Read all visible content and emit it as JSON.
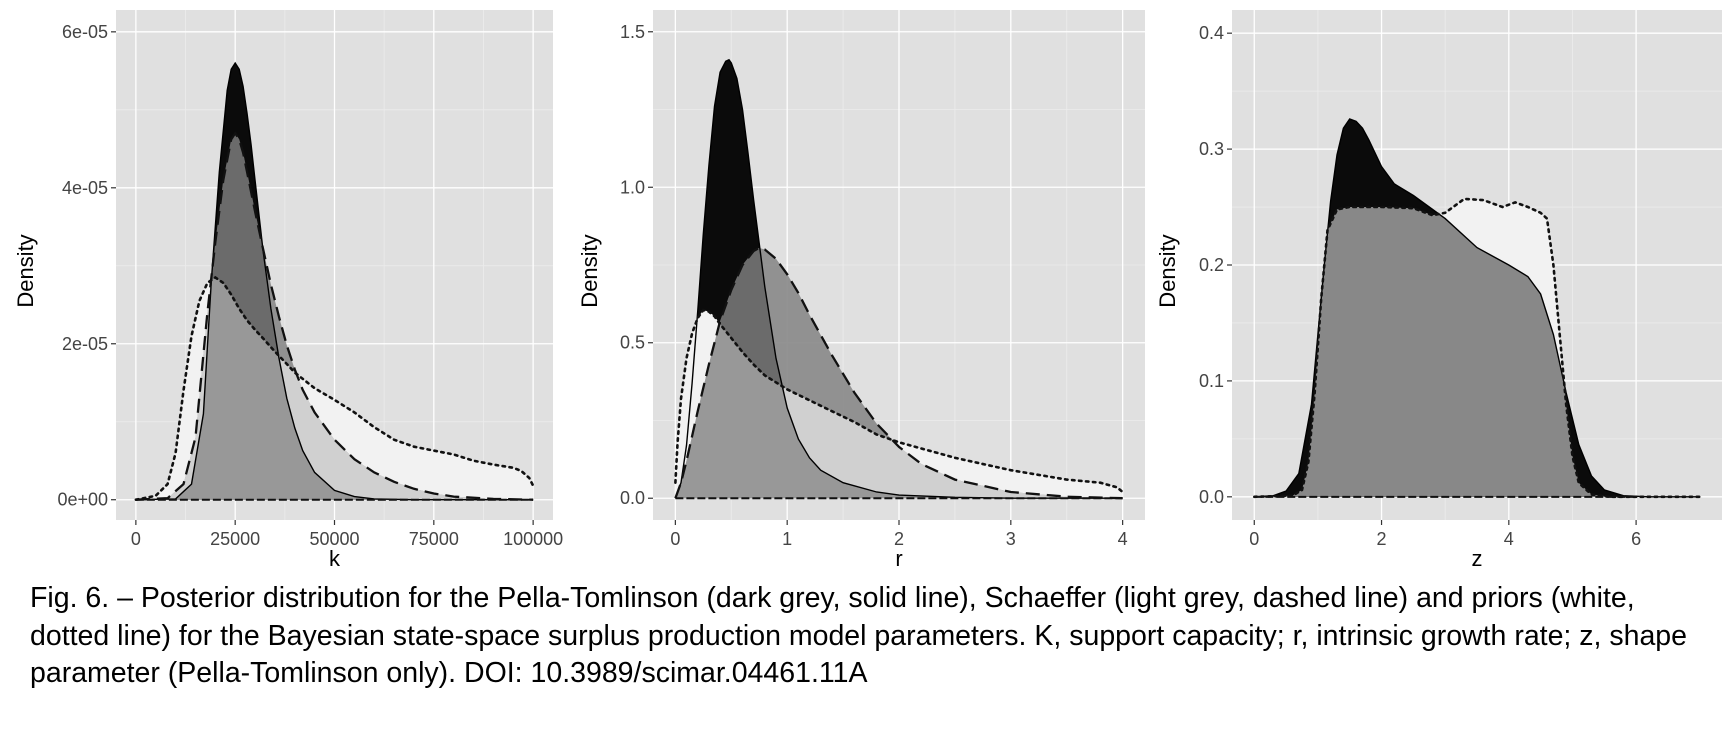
{
  "colors": {
    "panel_background": "#e0e0e0",
    "grid_major": "#ffffff",
    "pella_tomlinson_fill": "#0b0b0b",
    "schaeffer_fill": "#8a8a8a",
    "prior_fill": "#f2f2f2",
    "prior_schaeffer_overlap": "#d0d0d0",
    "pt_prior_overlap": "#888888"
  },
  "chart_data": [
    {
      "type": "area",
      "panel": "k",
      "xlabel": "k",
      "ylabel": "Density",
      "xlim": [
        -5000,
        105000
      ],
      "ylim": [
        -2.6e-06,
        6.28e-05
      ],
      "x_ticks": [
        0,
        25000,
        50000,
        75000,
        100000
      ],
      "x_tick_labels": [
        "0",
        "25000",
        "50000",
        "75000",
        "100000"
      ],
      "y_ticks": [
        0,
        2e-05,
        4e-05,
        6e-05
      ],
      "y_tick_labels": [
        "0e+00",
        "2e-05",
        "4e-05",
        "6e-05"
      ],
      "series": [
        {
          "name": "Prior",
          "fill": "white",
          "line": "dotted",
          "x": [
            0,
            5000,
            8000,
            10000,
            12000,
            14000,
            16000,
            18000,
            20000,
            22000,
            24000,
            26000,
            28000,
            30000,
            32000,
            35000,
            38000,
            40000,
            45000,
            50000,
            55000,
            60000,
            65000,
            70000,
            75000,
            80000,
            85000,
            90000,
            95000,
            97000,
            99000,
            100000
          ],
          "y": [
            0,
            5e-07,
            2e-06,
            6e-06,
            1.4e-05,
            2.1e-05,
            2.55e-05,
            2.78e-05,
            2.85e-05,
            2.78e-05,
            2.63e-05,
            2.45e-05,
            2.3e-05,
            2.18e-05,
            2.07e-05,
            1.9e-05,
            1.74e-05,
            1.63e-05,
            1.43e-05,
            1.28e-05,
            1.12e-05,
            9.3e-06,
            7.7e-06,
            6.8e-06,
            6.3e-06,
            5.8e-06,
            5e-06,
            4.5e-06,
            4.1e-06,
            3.7e-06,
            2.8e-06,
            1.8e-06
          ]
        },
        {
          "name": "Schaeffer",
          "fill": "light grey",
          "line": "dashed",
          "x": [
            0,
            8000,
            12000,
            15000,
            18000,
            20000,
            22000,
            24000,
            25000,
            26000,
            27000,
            28000,
            30000,
            32000,
            34000,
            36000,
            38000,
            40000,
            42000,
            45000,
            50000,
            55000,
            60000,
            65000,
            70000,
            75000,
            80000,
            90000,
            100000
          ],
          "y": [
            0,
            2e-07,
            2e-06,
            8e-06,
            2.4e-05,
            3.3e-05,
            4.1e-05,
            4.62e-05,
            4.7e-05,
            4.62e-05,
            4.45e-05,
            4.2e-05,
            3.7e-05,
            3.22e-05,
            2.76e-05,
            2.35e-05,
            1.98e-05,
            1.67e-05,
            1.41e-05,
            1.12e-05,
            7.7e-06,
            5.2e-06,
            3.5e-06,
            2.3e-06,
            1.4e-06,
            8e-07,
            4e-07,
            1e-07,
            0
          ]
        },
        {
          "name": "Pella-Tomlinson",
          "fill": "dark grey",
          "line": "solid",
          "x": [
            0,
            10000,
            14000,
            17000,
            19000,
            21000,
            23000,
            24000,
            25000,
            26000,
            27000,
            28000,
            29000,
            30000,
            32000,
            34000,
            36000,
            38000,
            40000,
            42000,
            45000,
            50000,
            55000,
            60000,
            70000,
            100000
          ],
          "y": [
            0,
            1e-07,
            2e-06,
            1.1e-05,
            2.8e-05,
            4.2e-05,
            5.25e-05,
            5.52e-05,
            5.6e-05,
            5.52e-05,
            5.3e-05,
            4.95e-05,
            4.55e-05,
            4.1e-05,
            3.2e-05,
            2.45e-05,
            1.82e-05,
            1.3e-05,
            9.2e-06,
            6.3e-06,
            3.5e-06,
            1.2e-06,
            4e-07,
            1e-07,
            0,
            0
          ]
        }
      ]
    },
    {
      "type": "area",
      "panel": "r",
      "xlabel": "r",
      "ylabel": "Density",
      "xlim": [
        -0.2,
        4.2
      ],
      "ylim": [
        -0.07,
        1.57
      ],
      "x_ticks": [
        0,
        1,
        2,
        3,
        4
      ],
      "x_tick_labels": [
        "0",
        "1",
        "2",
        "3",
        "4"
      ],
      "y_ticks": [
        0,
        0.5,
        1.0,
        1.5
      ],
      "y_tick_labels": [
        "0.0",
        "0.5",
        "1.0",
        "1.5"
      ],
      "series": [
        {
          "name": "Prior",
          "fill": "white",
          "line": "dotted",
          "x": [
            0,
            0.02,
            0.05,
            0.1,
            0.15,
            0.2,
            0.25,
            0.3,
            0.35,
            0.4,
            0.5,
            0.6,
            0.7,
            0.8,
            1.0,
            1.2,
            1.4,
            1.6,
            1.8,
            2.0,
            2.5,
            3.0,
            3.5,
            3.8,
            3.95,
            4.0
          ],
          "y": [
            0.05,
            0.18,
            0.32,
            0.45,
            0.53,
            0.58,
            0.605,
            0.6,
            0.585,
            0.56,
            0.515,
            0.47,
            0.43,
            0.395,
            0.35,
            0.315,
            0.28,
            0.245,
            0.205,
            0.18,
            0.13,
            0.09,
            0.06,
            0.05,
            0.035,
            0.02
          ]
        },
        {
          "name": "Schaeffer",
          "fill": "light grey",
          "line": "dashed",
          "x": [
            0,
            0.05,
            0.1,
            0.2,
            0.3,
            0.4,
            0.5,
            0.6,
            0.7,
            0.75,
            0.8,
            0.9,
            1.0,
            1.1,
            1.2,
            1.4,
            1.6,
            1.8,
            2.0,
            2.2,
            2.5,
            3.0,
            3.5,
            4.0
          ],
          "y": [
            0,
            0.05,
            0.12,
            0.28,
            0.43,
            0.57,
            0.67,
            0.75,
            0.795,
            0.805,
            0.8,
            0.77,
            0.72,
            0.66,
            0.59,
            0.46,
            0.34,
            0.24,
            0.165,
            0.11,
            0.06,
            0.02,
            0.005,
            0
          ]
        },
        {
          "name": "Pella-Tomlinson",
          "fill": "dark grey",
          "line": "solid",
          "x": [
            0,
            0.05,
            0.1,
            0.15,
            0.2,
            0.25,
            0.3,
            0.35,
            0.4,
            0.45,
            0.48,
            0.5,
            0.55,
            0.6,
            0.65,
            0.7,
            0.75,
            0.8,
            0.9,
            1.0,
            1.1,
            1.2,
            1.3,
            1.5,
            1.8,
            2.0,
            2.5,
            3.0,
            4.0
          ],
          "y": [
            0,
            0.05,
            0.17,
            0.37,
            0.6,
            0.85,
            1.07,
            1.26,
            1.37,
            1.405,
            1.41,
            1.4,
            1.35,
            1.25,
            1.11,
            0.96,
            0.82,
            0.68,
            0.45,
            0.29,
            0.19,
            0.13,
            0.09,
            0.05,
            0.02,
            0.01,
            0.003,
            0,
            0
          ]
        }
      ]
    },
    {
      "type": "area",
      "panel": "z",
      "xlabel": "z",
      "ylabel": "Density",
      "xlim": [
        -0.35,
        7.35
      ],
      "ylim": [
        -0.02,
        0.42
      ],
      "x_ticks": [
        0,
        2,
        4,
        6
      ],
      "x_tick_labels": [
        "0",
        "2",
        "4",
        "6"
      ],
      "y_ticks": [
        0,
        0.1,
        0.2,
        0.3,
        0.4
      ],
      "y_tick_labels": [
        "0.0",
        "0.1",
        "0.2",
        "0.3",
        "0.4"
      ],
      "series": [
        {
          "name": "Prior",
          "fill": "white",
          "line": "dotted",
          "x": [
            0,
            0.6,
            0.75,
            0.85,
            0.95,
            1.05,
            1.15,
            1.3,
            1.5,
            2.0,
            2.5,
            2.8,
            3.0,
            3.3,
            3.6,
            3.9,
            4.1,
            4.3,
            4.5,
            4.6,
            4.7,
            4.8,
            4.9,
            5.0,
            5.1,
            5.3,
            5.6,
            7.0
          ],
          "y": [
            0,
            0.001,
            0.006,
            0.03,
            0.09,
            0.17,
            0.23,
            0.248,
            0.25,
            0.25,
            0.249,
            0.243,
            0.245,
            0.257,
            0.256,
            0.25,
            0.254,
            0.25,
            0.245,
            0.24,
            0.2,
            0.14,
            0.08,
            0.035,
            0.012,
            0.002,
            0,
            0
          ]
        },
        {
          "name": "Pella-Tomlinson",
          "fill": "dark grey",
          "line": "solid",
          "x": [
            0,
            0.3,
            0.5,
            0.7,
            0.9,
            1.0,
            1.1,
            1.2,
            1.3,
            1.4,
            1.5,
            1.6,
            1.7,
            1.8,
            2.0,
            2.2,
            2.5,
            3.0,
            3.5,
            4.0,
            4.3,
            4.5,
            4.7,
            4.9,
            5.1,
            5.3,
            5.5,
            5.8,
            6.2,
            7.0
          ],
          "y": [
            0,
            0.001,
            0.005,
            0.02,
            0.08,
            0.14,
            0.2,
            0.255,
            0.295,
            0.318,
            0.326,
            0.324,
            0.318,
            0.308,
            0.285,
            0.27,
            0.26,
            0.24,
            0.215,
            0.2,
            0.19,
            0.175,
            0.14,
            0.09,
            0.045,
            0.018,
            0.006,
            0.001,
            0,
            0
          ]
        }
      ]
    }
  ],
  "caption": "Fig. 6. – Posterior distribution for the Pella-Tomlinson (dark grey, solid line), Schaeffer (light grey, dashed line) and priors (white, dotted line) for the Bayesian state-space surplus production model parameters. K, support capacity; r, intrinsic growth rate; z, shape parameter (Pella-Tomlinson only). DOI: 10.3989/scimar.04461.11A"
}
